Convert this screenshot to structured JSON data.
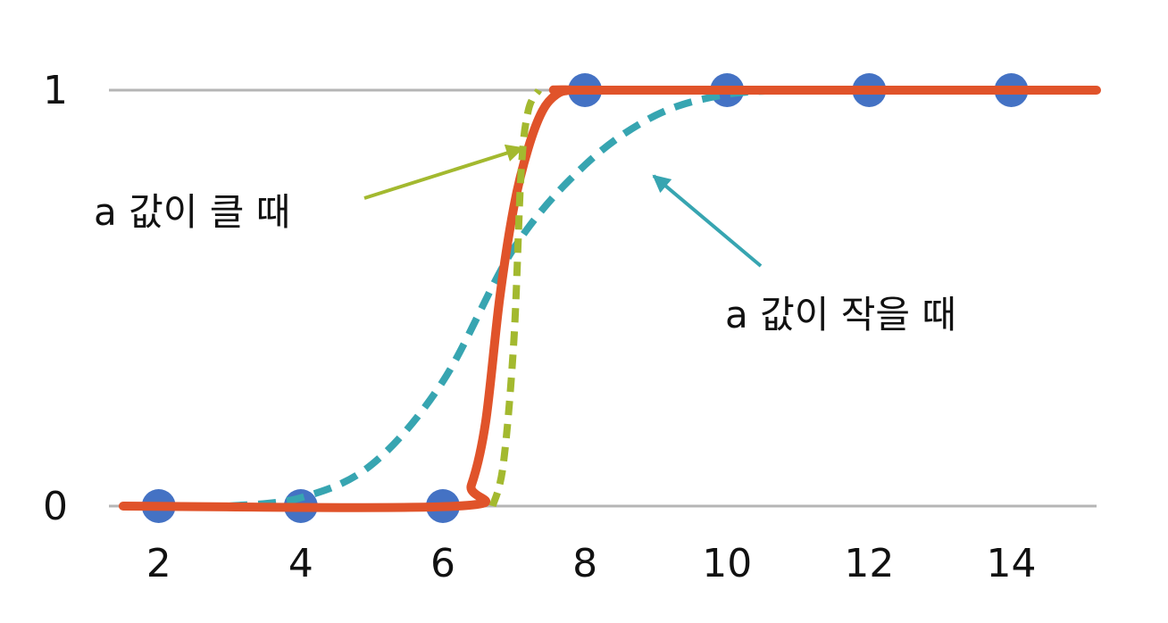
{
  "chart_data": {
    "type": "line",
    "title": "",
    "xlabel": "",
    "ylabel": "",
    "xlim": [
      1.3,
      15.2
    ],
    "ylim": [
      0,
      1
    ],
    "x_ticks": [
      "2",
      "4",
      "6",
      "8",
      "10",
      "12",
      "14"
    ],
    "y_ticks": [
      "0",
      "1"
    ],
    "grid": "horizontal",
    "points": {
      "x": [
        2,
        4,
        6,
        8,
        10,
        12,
        14
      ],
      "y": [
        0,
        0,
        0,
        1,
        1,
        1,
        1
      ]
    },
    "series": [
      {
        "style": "solid",
        "x": [
          1.5,
          6.2,
          6.4,
          6.6,
          6.8,
          7.0,
          7.2,
          7.4,
          7.6,
          7.8,
          8.2,
          15.2
        ],
        "y": [
          0,
          0,
          0.05,
          0.2,
          0.5,
          0.72,
          0.86,
          0.95,
          0.99,
          1,
          1,
          1
        ]
      },
      {
        "style": "dotted",
        "x": [
          6.7,
          6.85,
          7.0,
          7.1,
          7.2,
          7.35
        ],
        "y": [
          0,
          0.1,
          0.4,
          0.8,
          0.95,
          1
        ]
      },
      {
        "style": "dashed",
        "x": [
          3,
          4,
          5,
          6,
          7,
          8,
          9,
          10,
          11
        ],
        "y": [
          0,
          0.02,
          0.1,
          0.3,
          0.62,
          0.82,
          0.94,
          0.99,
          1
        ]
      }
    ],
    "annotations": [
      {
        "text": "a 값이 클 때"
      },
      {
        "text": "a 값이 작을 때"
      }
    ],
    "colors": {
      "points": "#4472c4",
      "solid": "#e0532a",
      "dotted": "#a3b92f",
      "dashed": "#37a5b1",
      "grid": "#b5b5b5"
    }
  }
}
